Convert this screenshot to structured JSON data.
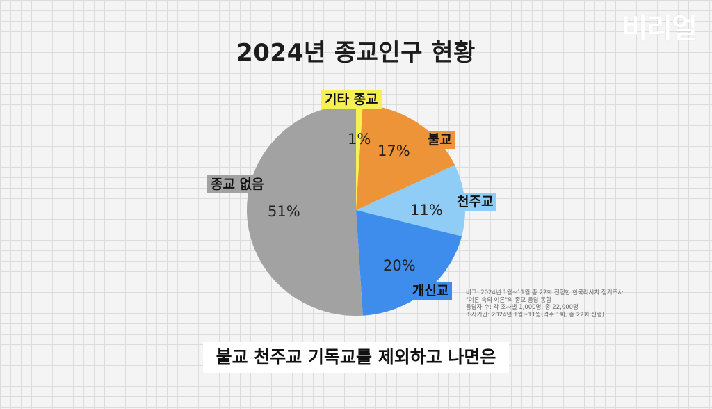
{
  "logo": "비리얼",
  "chart_data": {
    "type": "pie",
    "title": "2024년 종교인구 현황",
    "slices": [
      {
        "label": "기타 종교",
        "value": 1,
        "value_label": "1%",
        "color": "#f6f055",
        "label_bg": "#f6f055"
      },
      {
        "label": "불교",
        "value": 17,
        "value_label": "17%",
        "color": "#ec9437",
        "label_bg": "#ec9437"
      },
      {
        "label": "천주교",
        "value": 11,
        "value_label": "11%",
        "color": "#8fccf6",
        "label_bg": "#8fccf6"
      },
      {
        "label": "개신교",
        "value": 20,
        "value_label": "20%",
        "color": "#3e8cec",
        "label_bg": "#3e8cec"
      },
      {
        "label": "종교 없음",
        "value": 51,
        "value_label": "51%",
        "color": "#a2a2a2",
        "label_bg": "#a2a2a2"
      }
    ]
  },
  "note": [
    "비고: 2024년 1월~11월 총 22회 진행한 한국리서치 정기조사",
    "\"여론 속의 여론\"의 종교 응답 통합",
    "응답자 수: 각 조사별 1,000명, 총 22,000명",
    "조사기간: 2024년 1월~11월(격주 1회, 총 22회 진행)"
  ],
  "subtitle": "불교 천주교 기독교를 제외하고 나면은"
}
